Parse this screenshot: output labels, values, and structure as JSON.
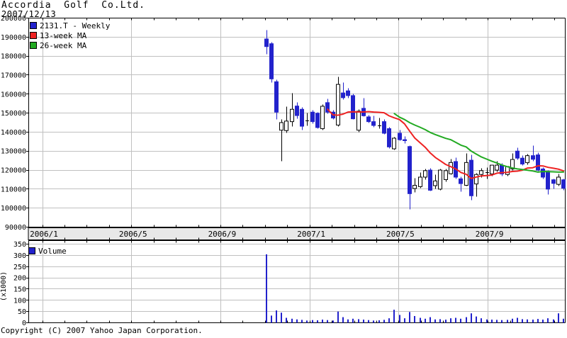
{
  "header": {
    "title": "Accordia  Golf  Co.Ltd.",
    "date": "2007/12/13"
  },
  "footer": {
    "copyright": "Copyright (C) 2007 Yahoo Japan Corporation."
  },
  "colors": {
    "background": "#ffffff",
    "text": "#000000",
    "axis": "#000000",
    "grid": "#c0c0c0",
    "band_bg": "#e8e8e8",
    "down_candle": "#2222cc",
    "up_candle": "#ffffff",
    "up_outline": "#000000",
    "ma13": "#ee2222",
    "ma26": "#22aa22",
    "volume": "#2222cc"
  },
  "chart_data": {
    "type": "candlestick",
    "title": "2131.T - Weekly",
    "price_panel": {
      "legend": [
        {
          "label": "2131.T - Weekly",
          "color_key": "down_candle"
        },
        {
          "label": "13-week MA",
          "color_key": "ma13"
        },
        {
          "label": "26-week MA",
          "color_key": "ma26"
        }
      ],
      "ylim": [
        90000,
        200000
      ],
      "y_ticks": [
        200000,
        190000,
        180000,
        170000,
        160000,
        150000,
        140000,
        130000,
        120000,
        110000,
        100000,
        90000
      ],
      "grid": true
    },
    "volume_panel": {
      "legend": [
        {
          "label": "Volume",
          "color_key": "volume"
        }
      ],
      "ylabel": "(x1000)",
      "ylim": [
        0,
        350
      ],
      "y_ticks": [
        350,
        300,
        250,
        200,
        150,
        100,
        50,
        0
      ],
      "grid": true
    },
    "x_axis": {
      "labels": [
        {
          "text": "2006/1",
          "month_index": 0
        },
        {
          "text": "2006/5",
          "month_index": 4
        },
        {
          "text": "2006/9",
          "month_index": 8
        },
        {
          "text": "2007/1",
          "month_index": 12
        },
        {
          "text": "2007/5",
          "month_index": 16
        },
        {
          "text": "2007/9",
          "month_index": 20
        }
      ],
      "months_total": 24
    },
    "moving_averages": [
      {
        "name": "13-week MA",
        "window": 13,
        "color_key": "ma13"
      },
      {
        "name": "26-week MA",
        "window": 26,
        "color_key": "ma26"
      }
    ],
    "series": {
      "name": "2131.T",
      "interval": "weekly",
      "columns": [
        "open",
        "high",
        "low",
        "close",
        "volume_x1000"
      ],
      "candles": [
        [
          189000,
          193500,
          181000,
          185000,
          305
        ],
        [
          186500,
          187500,
          166000,
          168000,
          32
        ],
        [
          166500,
          167500,
          146500,
          150500,
          55
        ],
        [
          141000,
          146500,
          124500,
          145000,
          45
        ],
        [
          140800,
          153500,
          139500,
          145800,
          22
        ],
        [
          145500,
          160500,
          143000,
          152000,
          18
        ],
        [
          153700,
          155500,
          147000,
          148700,
          15
        ],
        [
          152000,
          153000,
          141000,
          143100,
          13
        ],
        [
          146000,
          150000,
          143500,
          146000,
          10
        ],
        [
          150500,
          151500,
          144500,
          145500,
          12
        ],
        [
          149900,
          150500,
          142000,
          142400,
          11
        ],
        [
          141800,
          154500,
          141000,
          153600,
          14
        ],
        [
          155500,
          157500,
          149500,
          150500,
          12
        ],
        [
          150500,
          151500,
          146500,
          147400,
          10
        ],
        [
          143700,
          169200,
          143000,
          165100,
          50
        ],
        [
          160600,
          166000,
          157000,
          158100,
          25
        ],
        [
          161700,
          163000,
          158000,
          159200,
          15
        ],
        [
          159200,
          160000,
          146500,
          147000,
          18
        ],
        [
          141000,
          152000,
          140000,
          151000,
          16
        ],
        [
          152500,
          158000,
          148000,
          148600,
          14
        ],
        [
          148000,
          149000,
          145000,
          145500,
          12
        ],
        [
          145500,
          148500,
          142500,
          143500,
          10
        ],
        [
          143500,
          147500,
          142000,
          143500,
          11
        ],
        [
          145500,
          146500,
          139000,
          139400,
          13
        ],
        [
          141800,
          142500,
          131500,
          132200,
          20
        ],
        [
          131200,
          137500,
          130500,
          136800,
          58
        ],
        [
          139400,
          141000,
          135500,
          136000,
          35
        ],
        [
          136000,
          137800,
          134000,
          135500,
          20
        ],
        [
          132400,
          133000,
          99500,
          107600,
          48
        ],
        [
          110300,
          115700,
          108200,
          112000,
          30
        ],
        [
          111300,
          118800,
          110500,
          116300,
          22
        ],
        [
          116300,
          120500,
          115000,
          119700,
          18
        ],
        [
          120000,
          121000,
          109000,
          109400,
          25
        ],
        [
          111800,
          117500,
          110000,
          114300,
          15
        ],
        [
          110000,
          120500,
          109500,
          120000,
          16
        ],
        [
          115000,
          120500,
          114000,
          119700,
          14
        ],
        [
          118100,
          125900,
          117500,
          124000,
          20
        ],
        [
          124500,
          126400,
          115500,
          116300,
          22
        ],
        [
          115400,
          116500,
          108800,
          112900,
          18
        ],
        [
          112000,
          128700,
          111500,
          124000,
          25
        ],
        [
          125200,
          128100,
          104000,
          106500,
          42
        ],
        [
          112700,
          118500,
          106000,
          117700,
          28
        ],
        [
          117700,
          121000,
          116000,
          119700,
          20
        ],
        [
          118800,
          121500,
          115500,
          118800,
          15
        ],
        [
          118000,
          123000,
          117000,
          122600,
          14
        ],
        [
          120000,
          124500,
          119000,
          122600,
          13
        ],
        [
          122600,
          123500,
          117000,
          118000,
          12
        ],
        [
          117700,
          122000,
          117000,
          121900,
          13
        ],
        [
          120600,
          128800,
          120000,
          125600,
          18
        ],
        [
          130000,
          131800,
          125500,
          126300,
          22
        ],
        [
          126300,
          127500,
          122500,
          123200,
          16
        ],
        [
          123900,
          128500,
          123000,
          127600,
          15
        ],
        [
          127600,
          133000,
          124500,
          125700,
          14
        ],
        [
          128000,
          129000,
          119500,
          120000,
          17
        ],
        [
          120600,
          121500,
          115500,
          116300,
          14
        ],
        [
          119400,
          120000,
          107000,
          110000,
          20
        ],
        [
          114900,
          115500,
          110000,
          113000,
          15
        ],
        [
          112500,
          118100,
          111500,
          116300,
          42
        ],
        [
          114900,
          115500,
          109500,
          110500,
          18
        ]
      ]
    }
  }
}
